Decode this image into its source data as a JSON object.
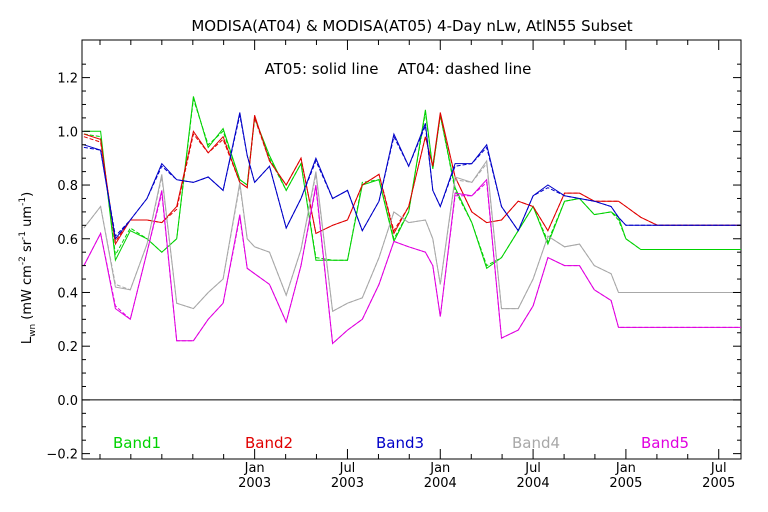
{
  "chart_data": {
    "type": "line",
    "title": "MODISA(AT04) & MODISA(AT05) 4-Day nLw, AtlN55 Subset",
    "annotation": "AT05: solid line    AT04: dashed line",
    "ylabel": {
      "main": "L",
      "sub": "wn",
      "units": " (mW cm",
      "sup1": "-2",
      "mid1": " sr",
      "sup2": "-1",
      "mid2": " um",
      "sup3": "-1",
      "end": ")"
    },
    "xlim": [
      2002.07,
      2005.62
    ],
    "ylim": [
      -0.22,
      1.34
    ],
    "y_ticks": [
      -0.2,
      0.0,
      0.2,
      0.4,
      0.6,
      0.8,
      1.0,
      1.2
    ],
    "y_tick_labels": [
      "−0.2",
      "0.0",
      "0.2",
      "0.4",
      "0.6",
      "0.8",
      "1.0",
      "1.2"
    ],
    "zero_line": 0.0,
    "x_major_ticks": [
      {
        "x": 2003.0,
        "month": "Jan",
        "year": "2003"
      },
      {
        "x": 2003.5,
        "month": "Jul",
        "year": "2003"
      },
      {
        "x": 2004.0,
        "month": "Jan",
        "year": "2004"
      },
      {
        "x": 2004.5,
        "month": "Jul",
        "year": "2004"
      },
      {
        "x": 2005.0,
        "month": "Jan",
        "year": "2005"
      },
      {
        "x": 2005.5,
        "month": "Jul",
        "year": "2005"
      }
    ],
    "x_minor_ticks": [
      2002.167,
      2002.333,
      2002.5,
      2002.667,
      2002.833,
      2003.167,
      2003.333,
      2003.667,
      2003.833,
      2004.167,
      2004.333,
      2004.667,
      2004.833,
      2005.167,
      2005.333
    ],
    "x": [
      2002.08,
      2002.17,
      2002.25,
      2002.33,
      2002.42,
      2002.5,
      2002.58,
      2002.67,
      2002.75,
      2002.83,
      2002.92,
      2002.96,
      2003.0,
      2003.08,
      2003.17,
      2003.25,
      2003.33,
      2003.42,
      2003.5,
      2003.58,
      2003.67,
      2003.75,
      2003.83,
      2003.92,
      2003.96,
      2004.0,
      2004.08,
      2004.17,
      2004.25,
      2004.33,
      2004.42,
      2004.5,
      2004.58,
      2004.67,
      2004.75,
      2004.83,
      2004.92,
      2004.96,
      2005.0,
      2005.08,
      2005.17,
      2005.25,
      2005.33,
      2005.42,
      2005.5,
      2005.58,
      2005.62
    ],
    "series": [
      {
        "name": "Band1",
        "color": "#00d200",
        "solid": [
          1.0,
          1.0,
          0.52,
          0.63,
          0.6,
          0.55,
          0.6,
          1.13,
          0.94,
          1.01,
          0.82,
          0.8,
          1.05,
          0.91,
          0.78,
          0.88,
          0.52,
          0.52,
          0.52,
          0.8,
          0.82,
          0.59,
          0.7,
          1.08,
          0.86,
          1.06,
          0.79,
          0.66,
          0.49,
          0.53,
          0.63,
          0.72,
          0.58,
          0.74,
          0.75,
          0.69,
          0.7,
          0.68,
          0.6,
          0.56,
          0.56,
          0.56,
          0.56,
          0.56,
          0.56,
          0.56,
          0.56
        ],
        "dashed": [
          0.99,
          0.98,
          0.54,
          0.64,
          0.6,
          0.55,
          0.6,
          1.12,
          0.95,
          1.0,
          0.82,
          0.8,
          1.05,
          0.9,
          0.78,
          0.88,
          0.53,
          0.52,
          0.52,
          0.81,
          0.82,
          0.6,
          0.7,
          1.07,
          0.86,
          1.06,
          0.78,
          0.66,
          0.5,
          0.53,
          0.63,
          0.72,
          0.59,
          0.74,
          0.75,
          0.69,
          0.7,
          0.67,
          0.6,
          0.56,
          0.56,
          0.56,
          0.56,
          0.56,
          0.56,
          0.56,
          0.56
        ]
      },
      {
        "name": "Band2",
        "color": "#e00000",
        "solid": [
          0.99,
          0.97,
          0.58,
          0.67,
          0.67,
          0.66,
          0.72,
          1.0,
          0.92,
          0.98,
          0.81,
          0.79,
          1.06,
          0.89,
          0.8,
          0.9,
          0.62,
          0.65,
          0.67,
          0.8,
          0.84,
          0.62,
          0.72,
          0.98,
          0.87,
          1.07,
          0.83,
          0.7,
          0.66,
          0.67,
          0.74,
          0.72,
          0.63,
          0.77,
          0.77,
          0.74,
          0.74,
          0.74,
          0.72,
          0.68,
          0.65,
          0.65,
          0.65,
          0.65,
          0.65,
          0.65,
          0.65
        ],
        "dashed": [
          0.98,
          0.96,
          0.59,
          0.67,
          0.67,
          0.66,
          0.71,
          0.99,
          0.92,
          0.97,
          0.81,
          0.79,
          1.05,
          0.89,
          0.8,
          0.9,
          0.62,
          0.65,
          0.67,
          0.8,
          0.84,
          0.63,
          0.72,
          0.98,
          0.87,
          1.06,
          0.83,
          0.7,
          0.66,
          0.67,
          0.74,
          0.72,
          0.63,
          0.77,
          0.77,
          0.74,
          0.74,
          0.74,
          0.72,
          0.68,
          0.65,
          0.65,
          0.65,
          0.65,
          0.65,
          0.65,
          0.65
        ]
      },
      {
        "name": "Band3",
        "color": "#0000c8",
        "solid": [
          0.95,
          0.93,
          0.6,
          0.67,
          0.75,
          0.88,
          0.82,
          0.81,
          0.83,
          0.78,
          1.07,
          0.91,
          0.81,
          0.87,
          0.64,
          0.75,
          0.9,
          0.75,
          0.78,
          0.63,
          0.74,
          0.99,
          0.87,
          1.03,
          0.78,
          0.72,
          0.88,
          0.88,
          0.95,
          0.72,
          0.63,
          0.76,
          0.8,
          0.76,
          0.75,
          0.74,
          0.72,
          0.68,
          0.65,
          0.65,
          0.65,
          0.65,
          0.65,
          0.65,
          0.65,
          0.65,
          0.65
        ],
        "dashed": [
          0.94,
          0.93,
          0.61,
          0.67,
          0.75,
          0.87,
          0.82,
          0.81,
          0.83,
          0.78,
          1.06,
          0.91,
          0.81,
          0.87,
          0.64,
          0.75,
          0.89,
          0.75,
          0.78,
          0.63,
          0.74,
          0.98,
          0.87,
          1.02,
          0.78,
          0.72,
          0.87,
          0.88,
          0.94,
          0.72,
          0.63,
          0.76,
          0.79,
          0.76,
          0.75,
          0.74,
          0.72,
          0.68,
          0.65,
          0.65,
          0.65,
          0.65,
          0.65,
          0.65,
          0.65,
          0.65,
          0.65
        ]
      },
      {
        "name": "Band4",
        "color": "#a8a8a8",
        "solid": [
          0.64,
          0.72,
          0.42,
          0.41,
          0.58,
          0.84,
          0.36,
          0.34,
          0.4,
          0.45,
          0.81,
          0.6,
          0.57,
          0.55,
          0.39,
          0.56,
          0.85,
          0.33,
          0.36,
          0.38,
          0.53,
          0.7,
          0.66,
          0.67,
          0.6,
          0.43,
          0.83,
          0.81,
          0.89,
          0.34,
          0.34,
          0.45,
          0.61,
          0.57,
          0.58,
          0.5,
          0.47,
          0.4,
          0.4,
          0.4,
          0.4,
          0.4,
          0.4,
          0.4,
          0.4,
          0.4,
          0.4
        ],
        "dashed": [
          0.64,
          0.72,
          0.43,
          0.41,
          0.58,
          0.83,
          0.36,
          0.34,
          0.4,
          0.45,
          0.8,
          0.6,
          0.57,
          0.55,
          0.39,
          0.56,
          0.84,
          0.33,
          0.36,
          0.38,
          0.53,
          0.7,
          0.66,
          0.67,
          0.6,
          0.43,
          0.82,
          0.81,
          0.88,
          0.34,
          0.34,
          0.45,
          0.61,
          0.57,
          0.58,
          0.5,
          0.47,
          0.4,
          0.4,
          0.4,
          0.4,
          0.4,
          0.4,
          0.4,
          0.4,
          0.4,
          0.4
        ]
      },
      {
        "name": "Band5",
        "color": "#e000e0",
        "solid": [
          0.5,
          0.62,
          0.34,
          0.3,
          0.55,
          0.78,
          0.22,
          0.22,
          0.3,
          0.36,
          0.69,
          0.49,
          0.47,
          0.43,
          0.29,
          0.5,
          0.8,
          0.21,
          0.26,
          0.3,
          0.43,
          0.59,
          0.57,
          0.55,
          0.5,
          0.31,
          0.77,
          0.76,
          0.82,
          0.23,
          0.26,
          0.35,
          0.53,
          0.5,
          0.5,
          0.41,
          0.37,
          0.27,
          0.27,
          0.27,
          0.27,
          0.27,
          0.27,
          0.27,
          0.27,
          0.27,
          0.27
        ],
        "dashed": [
          0.5,
          0.62,
          0.35,
          0.3,
          0.55,
          0.77,
          0.22,
          0.22,
          0.3,
          0.36,
          0.68,
          0.49,
          0.47,
          0.43,
          0.29,
          0.5,
          0.79,
          0.21,
          0.26,
          0.3,
          0.43,
          0.59,
          0.57,
          0.55,
          0.5,
          0.31,
          0.76,
          0.76,
          0.81,
          0.23,
          0.26,
          0.35,
          0.53,
          0.5,
          0.5,
          0.41,
          0.37,
          0.27,
          0.27,
          0.27,
          0.27,
          0.27,
          0.27,
          0.27,
          0.27,
          0.27,
          0.27
        ]
      }
    ],
    "legend": [
      {
        "label": "Band1",
        "color": "#00d200"
      },
      {
        "label": "Band2",
        "color": "#e00000"
      },
      {
        "label": "Band3",
        "color": "#0000c8"
      },
      {
        "label": "Band4",
        "color": "#a8a8a8"
      },
      {
        "label": "Band5",
        "color": "#e000e0"
      }
    ],
    "legend_placement": "bottom-inside",
    "grid": false
  }
}
